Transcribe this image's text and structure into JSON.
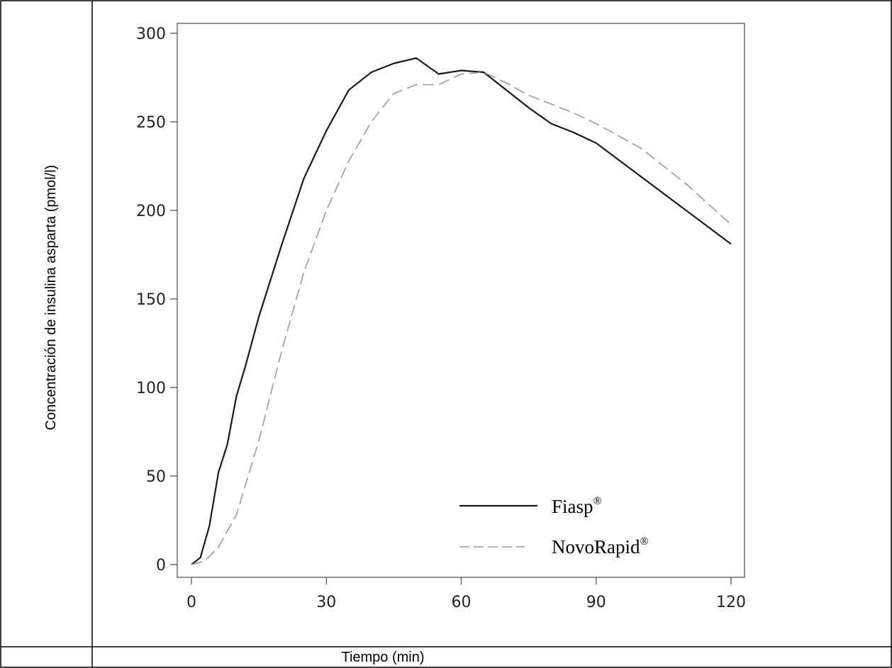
{
  "chart_data": {
    "type": "line",
    "xlabel": "Tiempo (min)",
    "ylabel": "Concentración de insulina asparta (pmol/l)",
    "xlim": [
      0,
      120
    ],
    "ylim": [
      0,
      300
    ],
    "xticks": [
      0,
      30,
      60,
      90,
      120
    ],
    "yticks": [
      0,
      50,
      100,
      150,
      200,
      250,
      300
    ],
    "grid": false,
    "legend_position": "bottom-right",
    "series": [
      {
        "name": "Fiasp",
        "name_sup": "®",
        "style": "solid",
        "color": "#1a1a1a",
        "x": [
          0,
          2,
          4,
          6,
          8,
          10,
          12,
          15,
          20,
          25,
          30,
          35,
          40,
          45,
          50,
          55,
          60,
          65,
          70,
          75,
          80,
          85,
          90,
          100,
          110,
          120
        ],
        "y": [
          0,
          4,
          22,
          52,
          68,
          95,
          112,
          140,
          180,
          218,
          245,
          268,
          278,
          283,
          286,
          277,
          279,
          278,
          268,
          258,
          249,
          244,
          238,
          219,
          200,
          181
        ]
      },
      {
        "name": "NovoRapid",
        "name_sup": "®",
        "style": "dashed",
        "color": "#9a9a9a",
        "x": [
          0,
          3,
          6,
          10,
          15,
          20,
          25,
          30,
          35,
          40,
          45,
          50,
          55,
          60,
          65,
          70,
          75,
          80,
          85,
          90,
          100,
          110,
          120
        ],
        "y": [
          0,
          2,
          10,
          28,
          70,
          120,
          165,
          200,
          228,
          250,
          266,
          271,
          271,
          277,
          278,
          272,
          265,
          260,
          255,
          249,
          235,
          215,
          192
        ]
      }
    ]
  }
}
